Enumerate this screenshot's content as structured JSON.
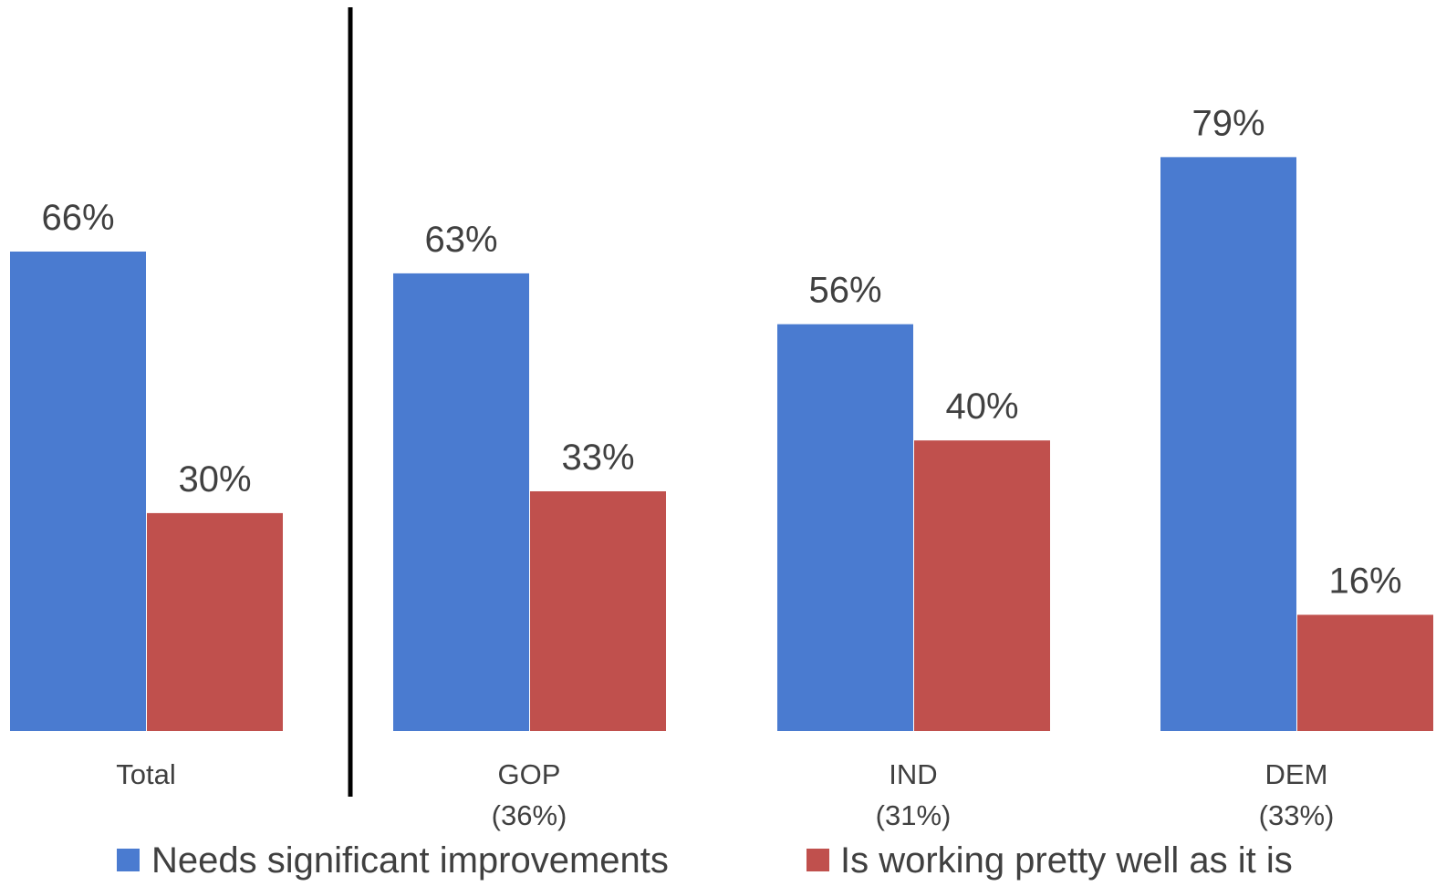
{
  "chart_data": {
    "type": "bar",
    "title": "",
    "xlabel": "",
    "ylabel": "",
    "ylim": [
      0,
      100
    ],
    "grid": false,
    "legend_position": "bottom",
    "categories": [
      {
        "label": "Total",
        "sublabel": ""
      },
      {
        "label": "GOP",
        "sublabel": "(36%)"
      },
      {
        "label": "IND",
        "sublabel": "(31%)"
      },
      {
        "label": "DEM",
        "sublabel": "(33%)"
      }
    ],
    "series": [
      {
        "name": "Needs significant improvements",
        "color": "#4A7BD0",
        "values": [
          66,
          63,
          56,
          79
        ],
        "labels": [
          "66%",
          "63%",
          "56%",
          "79%"
        ]
      },
      {
        "name": "Is working pretty well as it is",
        "color": "#C0504D",
        "values": [
          30,
          33,
          40,
          16
        ],
        "labels": [
          "30%",
          "33%",
          "40%",
          "16%"
        ]
      }
    ],
    "divider_after_category": 0
  }
}
